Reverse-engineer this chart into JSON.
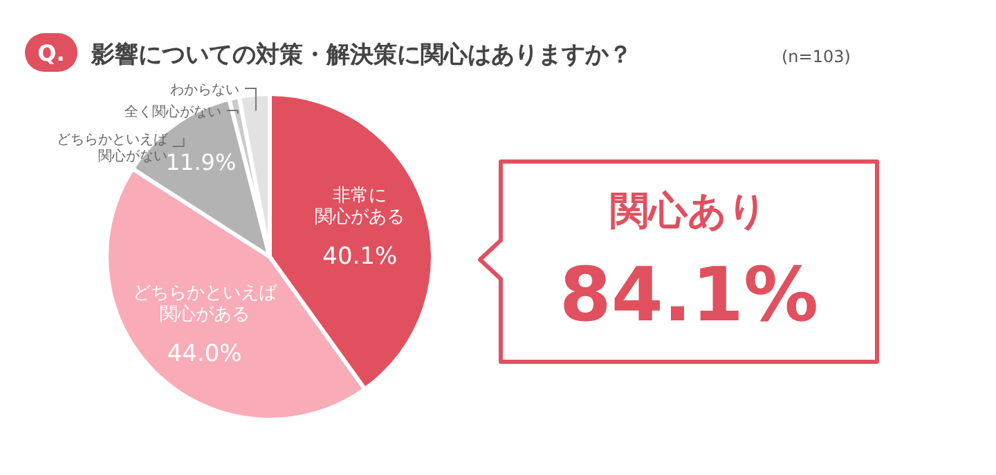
{
  "chart_data": {
    "type": "pie",
    "title": "影響についての対策・解決策に関心はありますか？",
    "subtitle": "(n=103)",
    "categories": [
      "非常に関心がある",
      "どちらかといえば関心がある",
      "どちらかといえば関心がない",
      "全く関心がない",
      "わからない"
    ],
    "values": [
      40.1,
      44.0,
      11.9,
      1.0,
      3.0
    ],
    "colors": [
      "#e0505e",
      "#f9abb8",
      "#b3b3b3",
      "#cacaca",
      "#e2e2e2"
    ],
    "value_labels": [
      "40.1%",
      "44.0%",
      "11.9%",
      null,
      null
    ],
    "annotations": [
      "Q.",
      "関心あり",
      "84.1%"
    ]
  }
}
